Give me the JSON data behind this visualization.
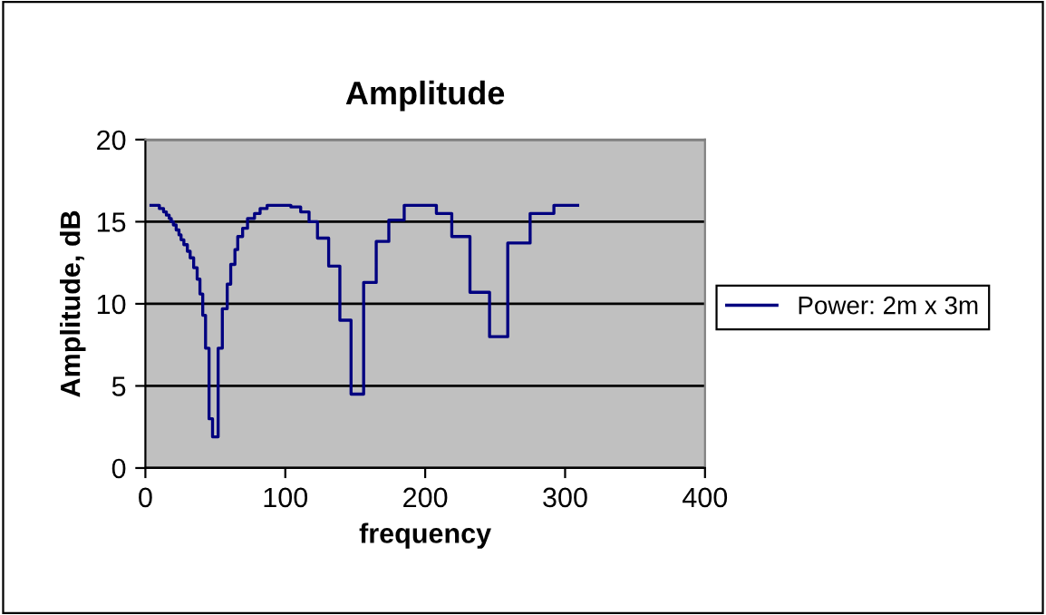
{
  "chart_data": {
    "type": "step",
    "title": "Amplitude",
    "xlabel": "frequency",
    "ylabel": "Amplitude, dB",
    "x": [
      4,
      10,
      13,
      15,
      17,
      18.5,
      20,
      22,
      24,
      25.5,
      27.5,
      30,
      32,
      34.5,
      37,
      39,
      41,
      43,
      45.5,
      48,
      52,
      55,
      58.5,
      61,
      64,
      66,
      69.5,
      73,
      78,
      82,
      87,
      93,
      104,
      111,
      117,
      123,
      131,
      139,
      147,
      156,
      165,
      174,
      185,
      195,
      208,
      219,
      232,
      246,
      259,
      275,
      292,
      309
    ],
    "series": [
      {
        "name": "Power: 2m x 3m",
        "color": "#000080",
        "values": [
          16,
          15.8,
          15.6,
          15.4,
          15.2,
          15,
          14.8,
          14.5,
          14.2,
          13.9,
          13.6,
          13.2,
          12.8,
          12.2,
          11.5,
          10.6,
          9.3,
          7.3,
          3,
          1.9,
          7.3,
          9.7,
          11.2,
          12.4,
          13.3,
          14.1,
          14.6,
          15.2,
          15.5,
          15.8,
          16,
          16,
          15.9,
          15.6,
          15,
          14,
          12.3,
          9,
          4.5,
          11.3,
          13.8,
          15.1,
          16,
          16,
          15.5,
          14.1,
          10.7,
          8,
          13.7,
          15.5,
          16,
          16
        ]
      }
    ],
    "xlim": [
      0,
      400
    ],
    "xticks": [
      0,
      100,
      200,
      300,
      400
    ],
    "ylim": [
      0,
      20
    ],
    "yticks": [
      0,
      5,
      10,
      15,
      20
    ],
    "grid": "y",
    "legend": "right",
    "marker": "none",
    "line_style": "solid"
  }
}
